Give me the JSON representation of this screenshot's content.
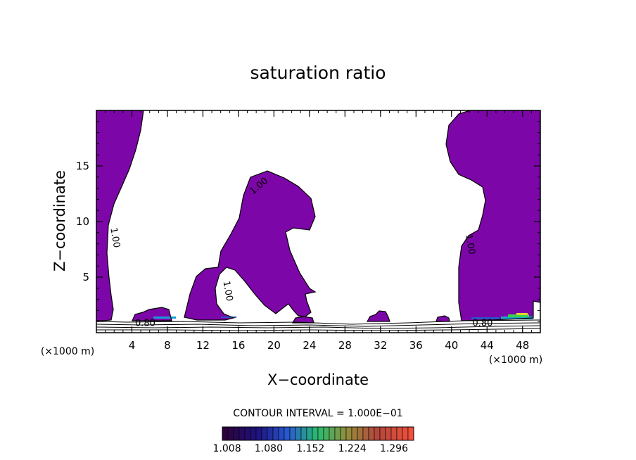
{
  "chart_data": {
    "type": "contour",
    "title": "saturation ratio",
    "xlabel": "X−coordinate",
    "ylabel": "Z−coordinate",
    "x_unit_left": "(×1000 m)",
    "x_unit_right": "(×1000 m)",
    "xlim": [
      0,
      50
    ],
    "ylim": [
      0,
      20
    ],
    "x_ticks": [
      4,
      8,
      12,
      16,
      20,
      24,
      28,
      32,
      36,
      40,
      44,
      48
    ],
    "y_ticks": [
      5,
      10,
      15
    ],
    "contour_interval_text": "CONTOUR INTERVAL = 1.000E−01",
    "contour_labels": [
      {
        "text": "1.00",
        "x": 1.8,
        "y": 8.5
      },
      {
        "text": "1.00",
        "x": 18.5,
        "y": 13.0
      },
      {
        "text": "1.00",
        "x": 14.5,
        "y": 3.7
      },
      {
        "text": "1.00",
        "x": 41.8,
        "y": 7.9
      },
      {
        "text": "0.80",
        "x": 5.5,
        "y": 0.6
      },
      {
        "text": "0.80",
        "x": 43.5,
        "y": 0.6
      }
    ],
    "fill_color": "#7d06a8",
    "colorbar_labels": [
      "1.008",
      "1.080",
      "1.152",
      "1.224",
      "1.296"
    ],
    "colorbar_range": [
      1.0,
      1.33
    ]
  }
}
